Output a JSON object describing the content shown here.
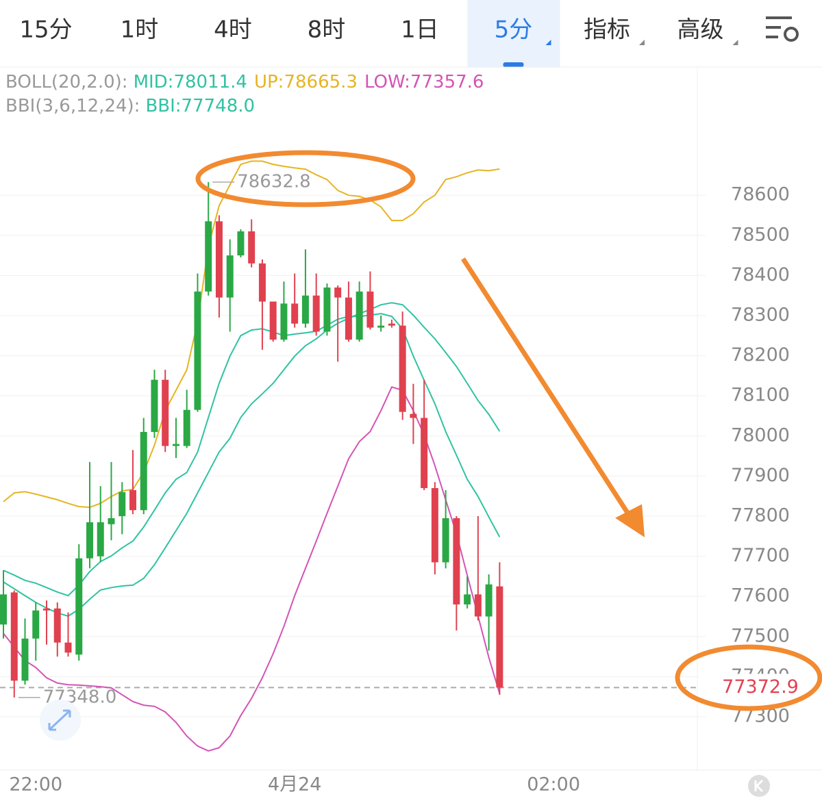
{
  "tabs": {
    "items": [
      "15分",
      "1时",
      "4时",
      "8时",
      "1日",
      "5分",
      "指标",
      "高级"
    ],
    "active": 5
  },
  "chart_data": {
    "type": "candlestick",
    "indicators": [
      {
        "label": "BOLL(20,2.0):",
        "items": [
          {
            "text": "MID:78011.4",
            "color": "#2fc2a2"
          },
          {
            "text": "UP:78665.3",
            "color": "#e6b422"
          },
          {
            "text": "LOW:77357.6",
            "color": "#d453b4"
          }
        ]
      },
      {
        "label": "BBI(3,6,12,24):",
        "items": [
          {
            "text": "BBI:77748.0",
            "color": "#2fc2a2"
          }
        ]
      }
    ],
    "up_color": "#2aa845",
    "down_color": "#e0414f",
    "open": [
      77530,
      77610,
      77390,
      77495,
      77570,
      77570,
      77485,
      77455,
      77695,
      77700,
      77780,
      77800,
      77865,
      77815,
      78010,
      78140,
      77975,
      77975,
      78065,
      78360,
      78535,
      78345,
      78450,
      78510,
      78430,
      78335,
      78240,
      78330,
      78280,
      78350,
      78260,
      78370,
      78345,
      78240,
      78360,
      78270,
      78280,
      78275,
      78055,
      78045,
      77870,
      77685,
      77795,
      77580,
      77605,
      77550,
      77625
    ],
    "high": [
      77665,
      77615,
      77545,
      77585,
      77590,
      77585,
      77560,
      77730,
      77935,
      77875,
      77935,
      77885,
      77965,
      78045,
      78165,
      78165,
      78045,
      78115,
      78405,
      78632.8,
      78550,
      78490,
      78515,
      78540,
      78440,
      78335,
      78385,
      78405,
      78465,
      78405,
      78380,
      78375,
      78385,
      78385,
      78410,
      78300,
      78290,
      78310,
      78130,
      78140,
      77885,
      77865,
      77800,
      77650,
      77800,
      77655,
      77685
    ],
    "low": [
      77495,
      77348,
      77380,
      77440,
      77480,
      77450,
      77450,
      77440,
      77670,
      77685,
      77740,
      77755,
      77805,
      77805,
      77995,
      77960,
      77945,
      77970,
      78060,
      78350,
      78295,
      78260,
      78445,
      78420,
      78215,
      78235,
      78235,
      78270,
      78270,
      78250,
      78250,
      78185,
      78235,
      78235,
      78265,
      78260,
      78270,
      78040,
      77980,
      77865,
      77655,
      77670,
      77515,
      77570,
      77540,
      77465,
      77355
    ],
    "close": [
      77605,
      77390,
      77495,
      77565,
      77565,
      77485,
      77460,
      77695,
      77785,
      77785,
      77795,
      77860,
      77815,
      78010,
      78140,
      77975,
      77980,
      78065,
      78360,
      78535,
      78345,
      78450,
      78510,
      78430,
      78335,
      78240,
      78330,
      78280,
      78350,
      78260,
      78370,
      78345,
      78240,
      78360,
      78270,
      78275,
      78275,
      78060,
      78045,
      77870,
      77685,
      77795,
      77580,
      77605,
      77550,
      77630,
      77372.9
    ],
    "series": [
      {
        "color": "#e6b422",
        "values": [
          77836,
          77858,
          77861,
          77855,
          77848,
          77841,
          77832,
          77824,
          77822,
          77832,
          77849,
          77863,
          77867,
          77909,
          77977,
          78063,
          78114,
          78165,
          78284,
          78472,
          78574,
          78626,
          78677,
          78685,
          78685,
          78677,
          78672,
          78668,
          78665,
          78651,
          78639,
          78612,
          78600,
          78597,
          78588,
          78571,
          78537,
          78537,
          78554,
          78583,
          78600,
          78639,
          78646,
          78656,
          78663,
          78661,
          78665.3
        ]
      },
      {
        "color": "#2fc2a2",
        "values": [
          77636,
          77619,
          77602,
          77585,
          77571,
          77559,
          77551,
          77568,
          77593,
          77616,
          77622,
          77626,
          77628,
          77645,
          77679,
          77721,
          77764,
          77807,
          77858,
          77909,
          77960,
          77994,
          78046,
          78080,
          78105,
          78131,
          78165,
          78199,
          78225,
          78242,
          78264,
          78281,
          78293,
          78305,
          78315,
          78327,
          78332,
          78327,
          78301,
          78271,
          78242,
          78208,
          78173,
          78131,
          78088,
          78054,
          78011.4
        ]
      },
      {
        "color": "#d453b4",
        "values": [
          77508,
          77474,
          77440,
          77423,
          77397,
          77384,
          77380,
          77379,
          77377,
          77375,
          77372,
          77355,
          77338,
          77329,
          77326,
          77312,
          77286,
          77252,
          77227,
          77215,
          77223,
          77252,
          77303,
          77346,
          77397,
          77457,
          77525,
          77602,
          77670,
          77738,
          77807,
          77875,
          77943,
          77986,
          78011,
          78063,
          78122,
          78114,
          78063,
          78003,
          77926,
          77841,
          77756,
          77653,
          77551,
          77448,
          77357.6
        ]
      },
      {
        "color": "#2fc2a2",
        "values": [
          77665,
          77653,
          77640,
          77633,
          77622,
          77611,
          77602,
          77628,
          77662,
          77687,
          77701,
          77721,
          77738,
          77773,
          77815,
          77858,
          77892,
          77909,
          77960,
          78046,
          78131,
          78199,
          78250,
          78264,
          78267,
          78259,
          78250,
          78254,
          78257,
          78261,
          78276,
          78291,
          78298,
          78298,
          78301,
          78305,
          78298,
          78267,
          78199,
          78139,
          78080,
          78011,
          77952,
          77892,
          77849,
          77798,
          77748.0
        ]
      }
    ],
    "extreme_labels": {
      "high": {
        "index": 19,
        "label": "78632.8"
      },
      "low": {
        "index": 1,
        "label": "77348.0"
      }
    },
    "ylim": [
      77167,
      78916
    ],
    "yticks": [
      77300,
      77400,
      77500,
      77600,
      77700,
      77800,
      77900,
      78000,
      78100,
      78200,
      78300,
      78400,
      78500,
      78600
    ],
    "xlim": [
      -0.3185,
      64.33
    ],
    "xticks": [
      {
        "value": 3,
        "label": "22:00"
      },
      {
        "value": 27,
        "label": "4月24"
      },
      {
        "value": 51,
        "label": "02:00"
      }
    ],
    "grid": true
  }
}
